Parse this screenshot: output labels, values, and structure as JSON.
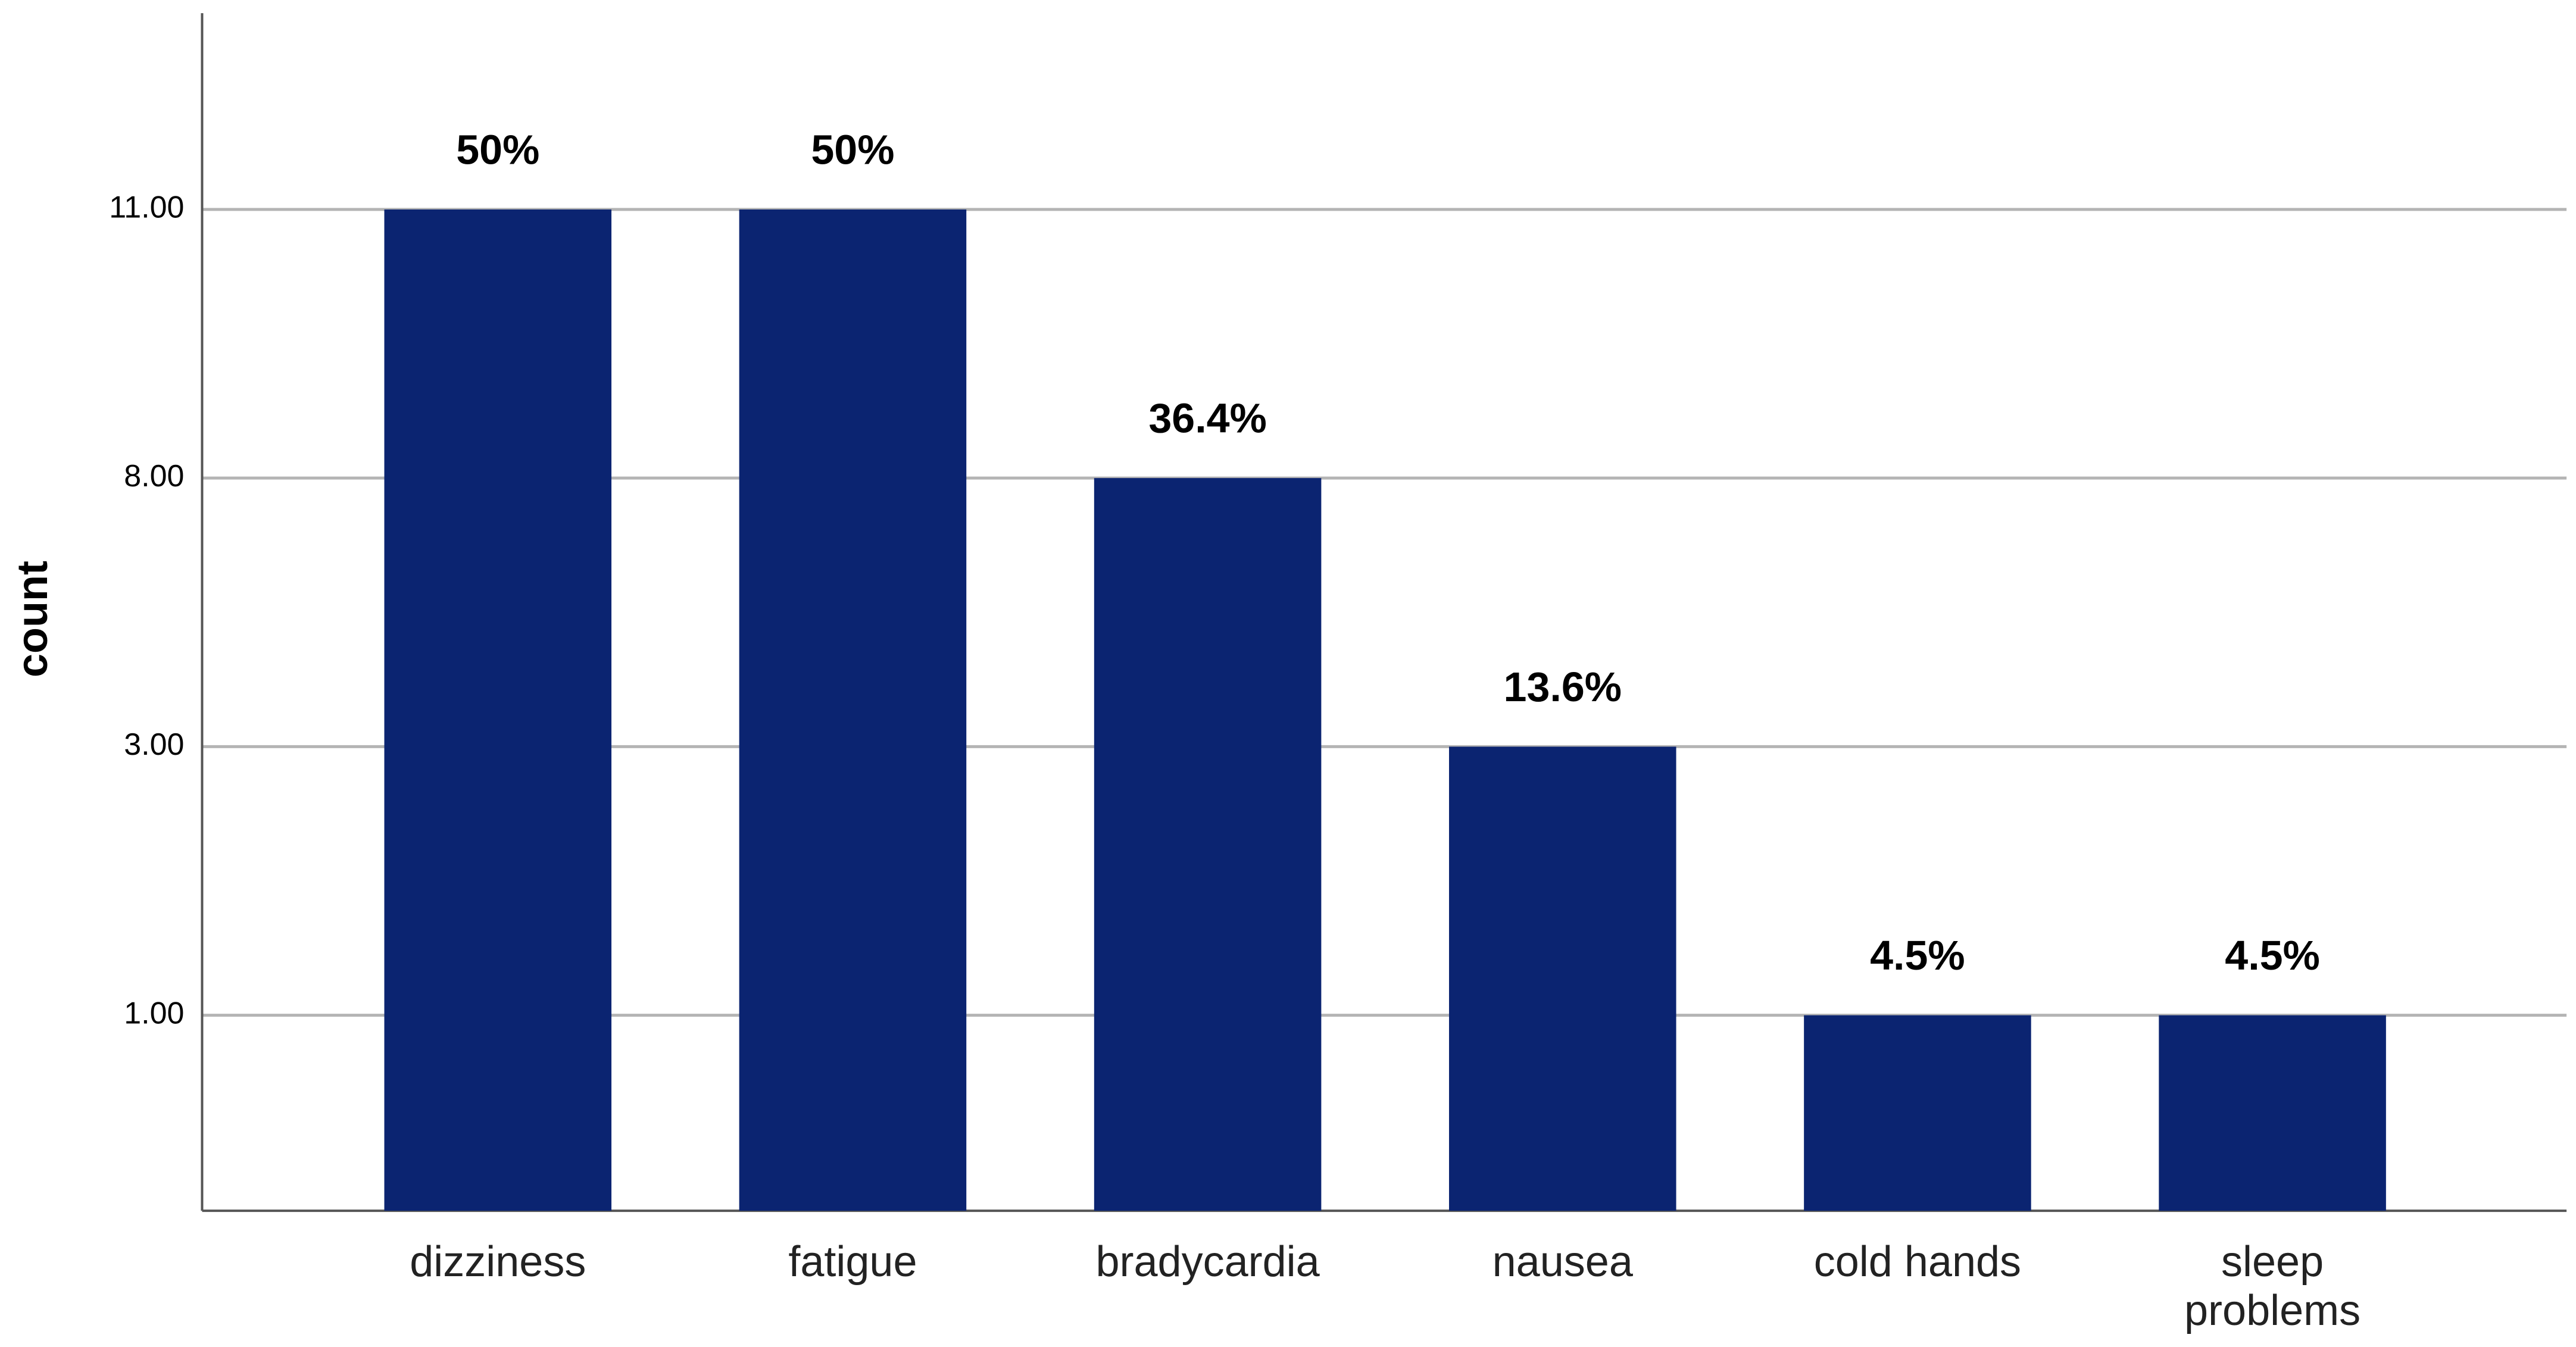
{
  "chart_data": {
    "type": "bar",
    "y_label": "count",
    "categories": [
      "dizziness",
      "fatigue",
      "bradycardia",
      "nausea",
      "cold hands",
      "sleep problems"
    ],
    "values": [
      11,
      11,
      8,
      3,
      1,
      1
    ],
    "data_labels": [
      "50%",
      "50%",
      "36.4%",
      "13.6%",
      "4.5%",
      "4.5%"
    ],
    "color": "#0b2471",
    "ylim": [
      0,
      13
    ],
    "yticks": [
      {
        "value": 1,
        "label": "1.00"
      },
      {
        "value": 3,
        "label": "3.00"
      },
      {
        "value": 8,
        "label": "8.00"
      },
      {
        "value": 11,
        "label": "11.00"
      }
    ],
    "grid": true
  }
}
